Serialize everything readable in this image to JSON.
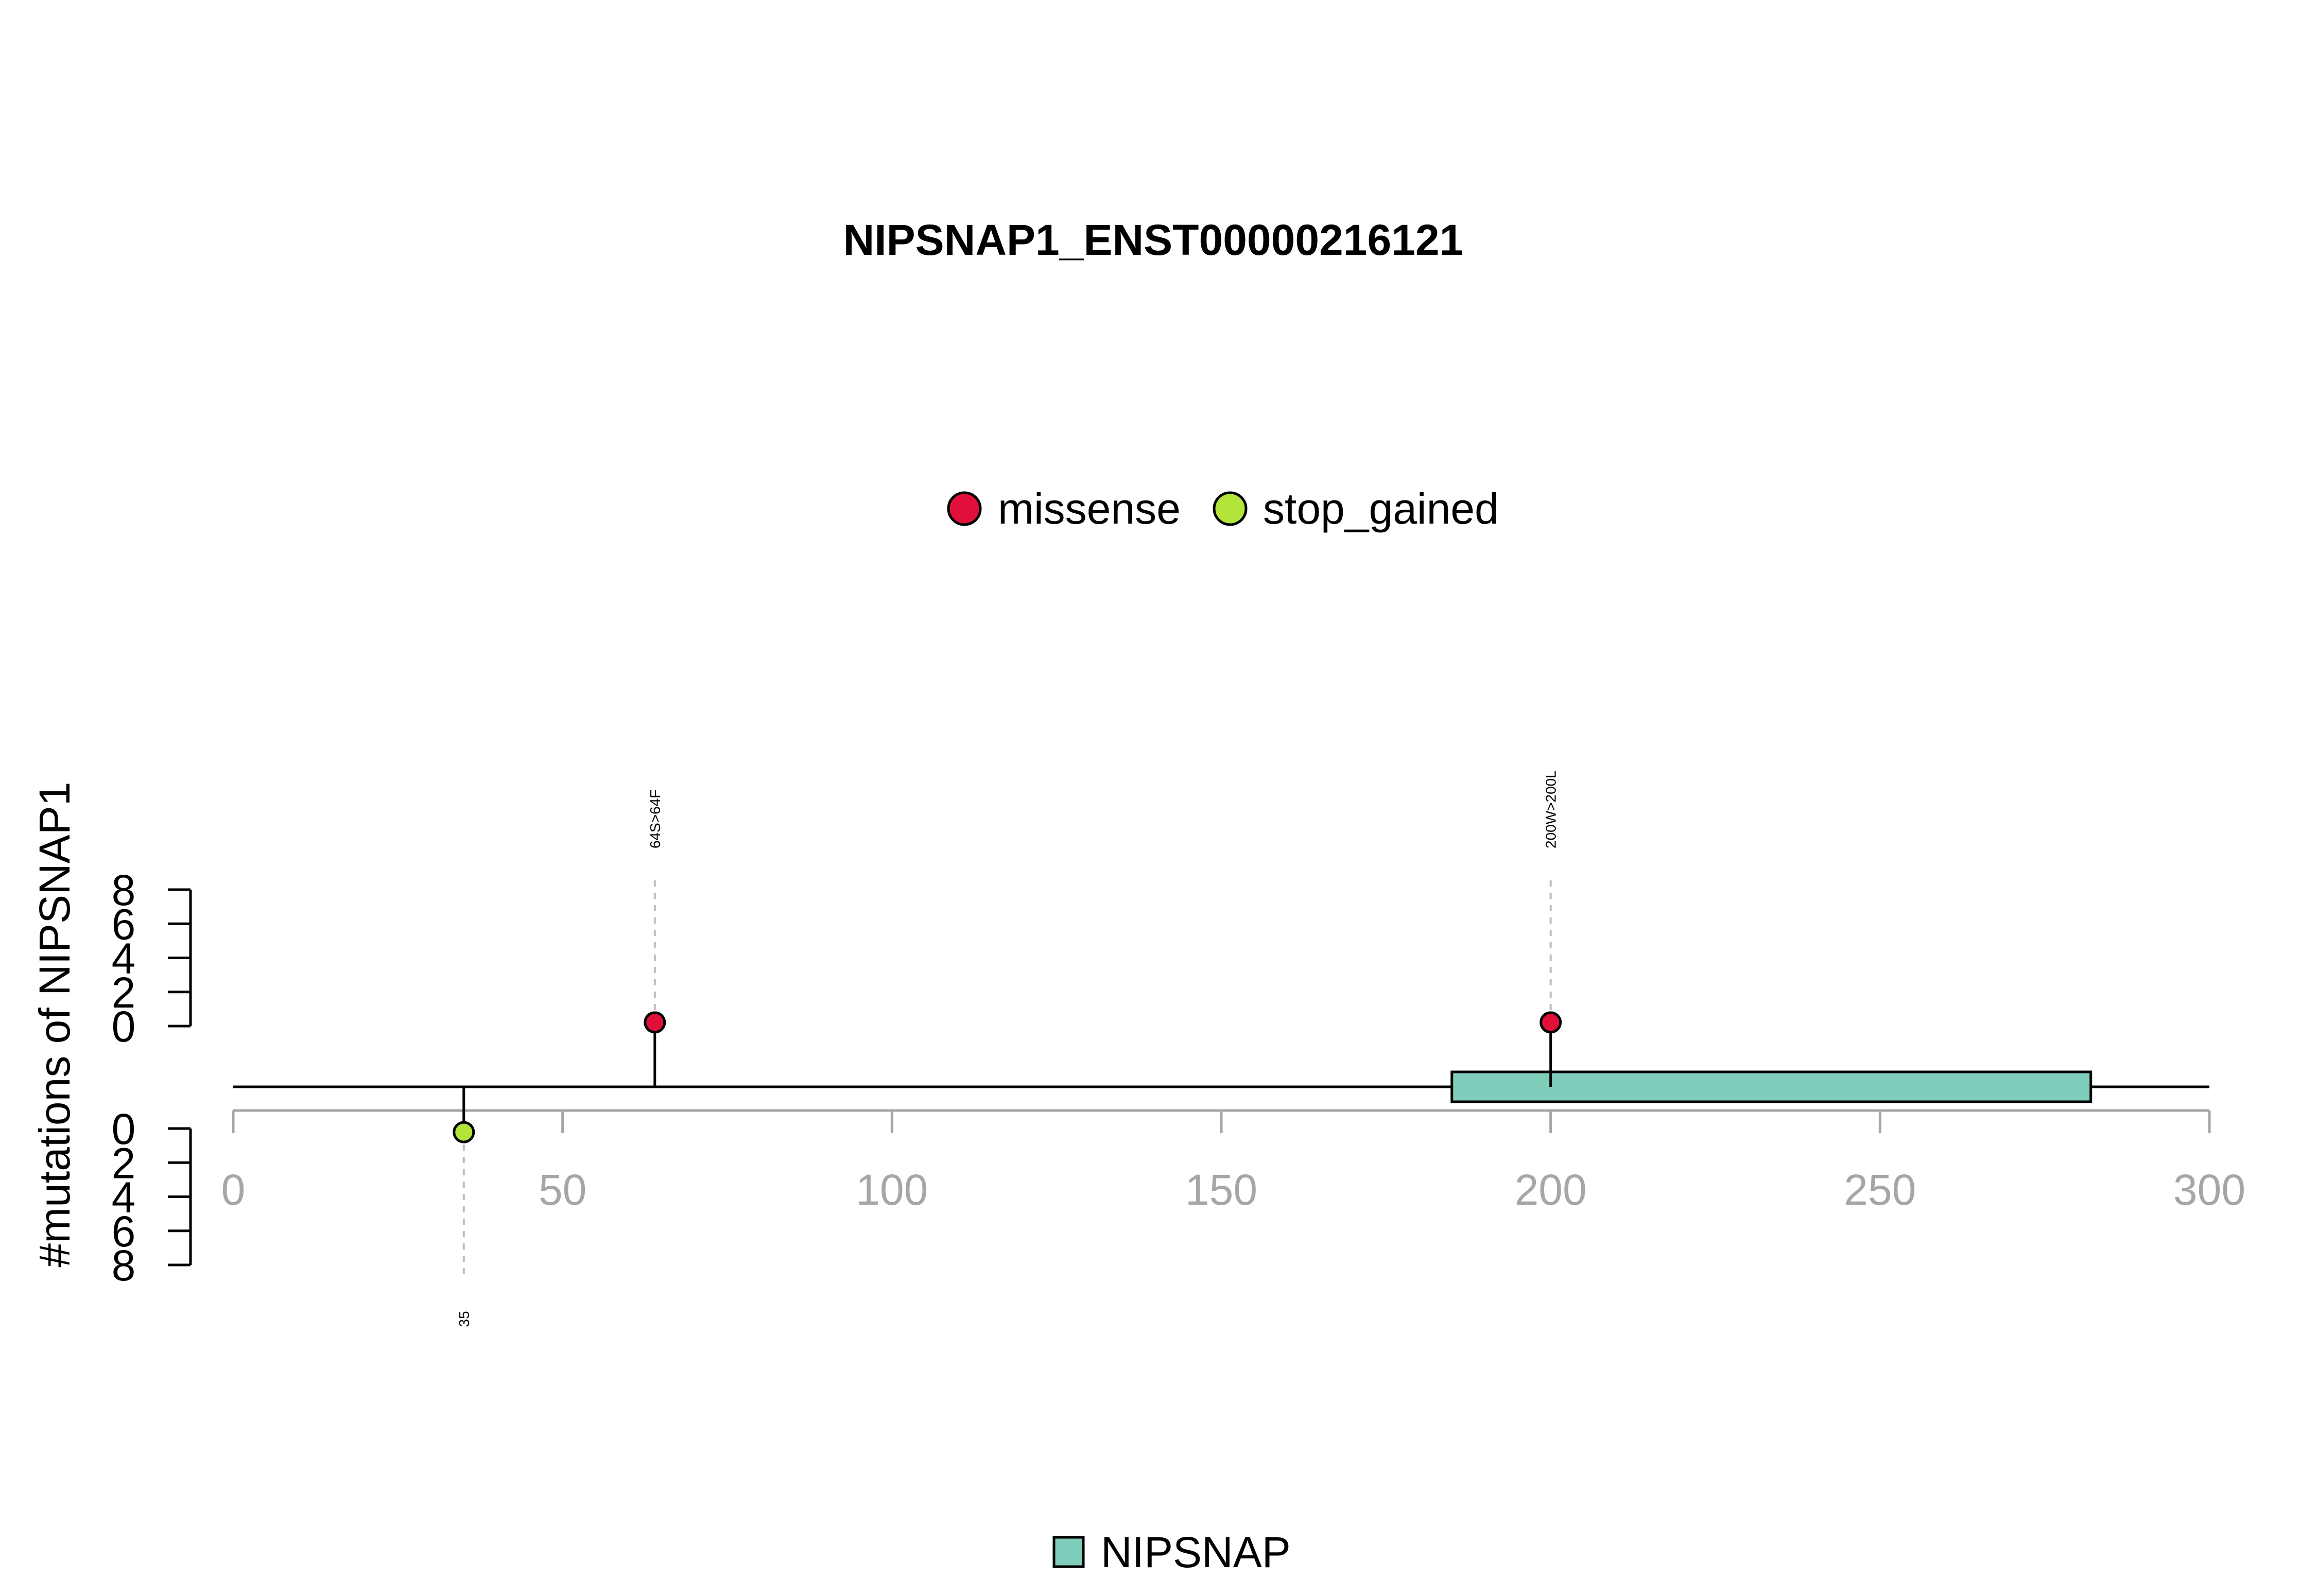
{
  "chart_data": {
    "type": "lollipop",
    "title": "NIPSNAP1_ENST00000216121",
    "ylabel": "#mutations of NIPSNAP1",
    "xlim": [
      0,
      300
    ],
    "x_ticks": [
      0,
      50,
      100,
      150,
      200,
      250,
      300
    ],
    "y_ticks": [
      0,
      2,
      4,
      6,
      8
    ],
    "ylim": [
      0,
      8
    ],
    "legend": {
      "position": "top-center",
      "entries": [
        {
          "label": "missense",
          "color": "#E0103B"
        },
        {
          "label": "stop_gained",
          "color": "#B3E43A"
        }
      ]
    },
    "mutations": [
      {
        "position": 35,
        "label": "35",
        "type": "stop_gained",
        "count": 1,
        "side": "bottom",
        "color": "#B3E43A"
      },
      {
        "position": 64,
        "label": "64S>64F",
        "type": "missense",
        "count": 1,
        "side": "top",
        "color": "#E0103B"
      },
      {
        "position": 200,
        "label": "200W>200L",
        "type": "missense",
        "count": 1,
        "side": "top",
        "color": "#E0103B"
      }
    ],
    "domains": [
      {
        "name": "NIPSNAP",
        "start": 185,
        "end": 282,
        "color": "#7FCDBB"
      }
    ],
    "domain_legend": {
      "position": "bottom-center",
      "label": "NIPSNAP",
      "color": "#7FCDBB"
    }
  }
}
